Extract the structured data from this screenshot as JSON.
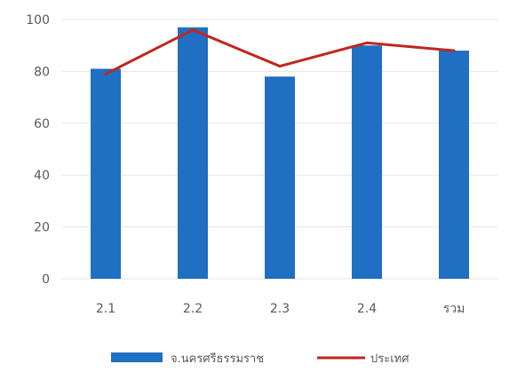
{
  "chart_data": {
    "type": "bar",
    "categories": [
      "2.1",
      "2.2",
      "2.3",
      "2.4",
      "รวม"
    ],
    "series": [
      {
        "name": "จ.นครศรีธรรมราช",
        "type": "bar",
        "values": [
          81,
          97,
          78,
          90,
          88
        ],
        "color": "#1f6fc2"
      },
      {
        "name": "ประเทศ",
        "type": "line",
        "values": [
          79,
          96,
          82,
          91,
          88
        ],
        "color": "#c0261e"
      }
    ],
    "yticks": [
      0,
      20,
      40,
      60,
      80,
      100
    ],
    "ylim": [
      0,
      100
    ],
    "grid": true,
    "legend": "bottom"
  }
}
